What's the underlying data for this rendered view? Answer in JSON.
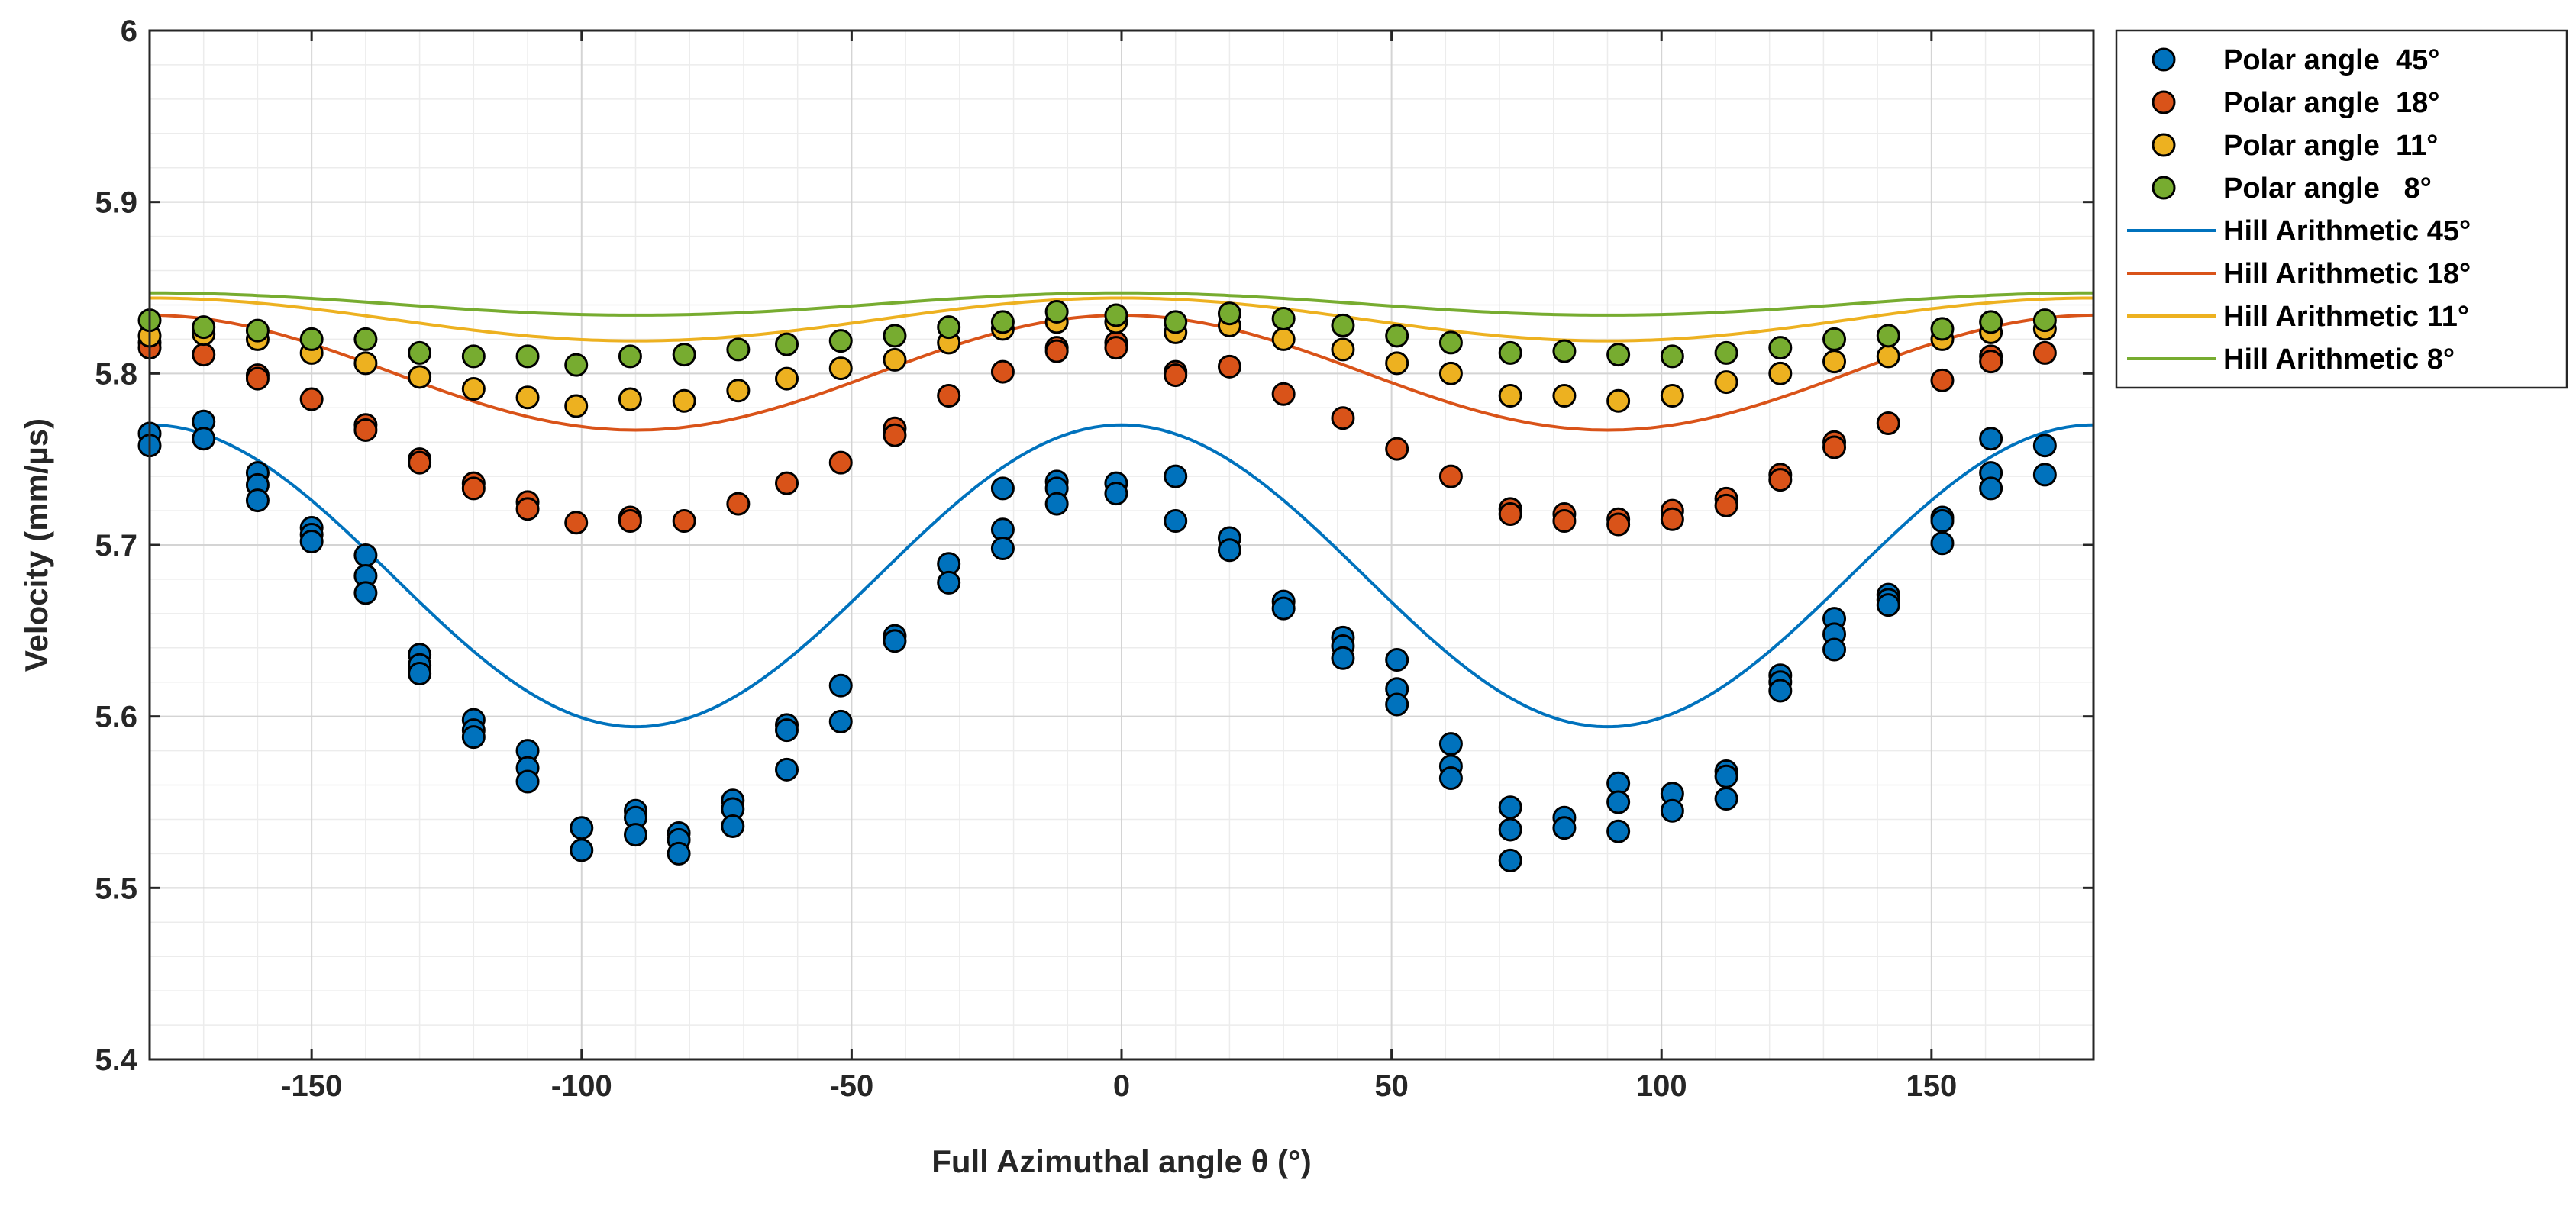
{
  "chart_data": {
    "type": "scatter",
    "title": "",
    "xlabel": "Full Azimuthal angle θ (°)",
    "ylabel": "Velocity (mm/µs)",
    "xlim": [
      -180,
      180
    ],
    "ylim": [
      5.4,
      6.0
    ],
    "xticks": [
      -150,
      -100,
      -50,
      0,
      50,
      100,
      150
    ],
    "xtick_labels": [
      "-150",
      "-100",
      "-50",
      "0",
      "50",
      "100",
      "150"
    ],
    "yticks": [
      5.4,
      5.5,
      5.6,
      5.7,
      5.8,
      5.9,
      6.0
    ],
    "ytick_labels": [
      "5.4",
      "5.5",
      "5.6",
      "5.7",
      "5.8",
      "5.9",
      "6"
    ],
    "grid": true,
    "minor_grid": true,
    "legend_position": "outside-right-top",
    "series": [
      {
        "name": "Polar angle  45°",
        "kind": "scatter",
        "color": "#0072BD",
        "points": [
          [
            -180,
            5.765
          ],
          [
            -180,
            5.758
          ],
          [
            -170,
            5.772
          ],
          [
            -170,
            5.762
          ],
          [
            -160,
            5.742
          ],
          [
            -160,
            5.735
          ],
          [
            -160,
            5.726
          ],
          [
            -150,
            5.71
          ],
          [
            -150,
            5.706
          ],
          [
            -150,
            5.702
          ],
          [
            -140,
            5.694
          ],
          [
            -140,
            5.682
          ],
          [
            -140,
            5.672
          ],
          [
            -130,
            5.636
          ],
          [
            -130,
            5.63
          ],
          [
            -130,
            5.625
          ],
          [
            -120,
            5.598
          ],
          [
            -120,
            5.592
          ],
          [
            -120,
            5.588
          ],
          [
            -110,
            5.58
          ],
          [
            -110,
            5.57
          ],
          [
            -110,
            5.562
          ],
          [
            -100,
            5.535
          ],
          [
            -100,
            5.522
          ],
          [
            -90,
            5.545
          ],
          [
            -90,
            5.541
          ],
          [
            -90,
            5.531
          ],
          [
            -82,
            5.532
          ],
          [
            -82,
            5.528
          ],
          [
            -82,
            5.52
          ],
          [
            -72,
            5.551
          ],
          [
            -72,
            5.546
          ],
          [
            -72,
            5.536
          ],
          [
            -62,
            5.595
          ],
          [
            -62,
            5.592
          ],
          [
            -62,
            5.569
          ],
          [
            -52,
            5.618
          ],
          [
            -52,
            5.597
          ],
          [
            -42,
            5.647
          ],
          [
            -42,
            5.644
          ],
          [
            -32,
            5.689
          ],
          [
            -32,
            5.678
          ],
          [
            -22,
            5.733
          ],
          [
            -22,
            5.709
          ],
          [
            -22,
            5.698
          ],
          [
            -12,
            5.737
          ],
          [
            -12,
            5.733
          ],
          [
            -12,
            5.724
          ],
          [
            -1,
            5.736
          ],
          [
            -1,
            5.73
          ],
          [
            10,
            5.74
          ],
          [
            10,
            5.714
          ],
          [
            20,
            5.704
          ],
          [
            20,
            5.697
          ],
          [
            30,
            5.667
          ],
          [
            30,
            5.663
          ],
          [
            41,
            5.646
          ],
          [
            41,
            5.641
          ],
          [
            41,
            5.634
          ],
          [
            51,
            5.633
          ],
          [
            51,
            5.616
          ],
          [
            51,
            5.607
          ],
          [
            61,
            5.584
          ],
          [
            61,
            5.571
          ],
          [
            61,
            5.564
          ],
          [
            72,
            5.547
          ],
          [
            72,
            5.534
          ],
          [
            72,
            5.516
          ],
          [
            82,
            5.541
          ],
          [
            82,
            5.535
          ],
          [
            92,
            5.561
          ],
          [
            92,
            5.55
          ],
          [
            92,
            5.533
          ],
          [
            102,
            5.555
          ],
          [
            102,
            5.545
          ],
          [
            112,
            5.568
          ],
          [
            112,
            5.565
          ],
          [
            112,
            5.552
          ],
          [
            122,
            5.624
          ],
          [
            122,
            5.62
          ],
          [
            122,
            5.615
          ],
          [
            132,
            5.657
          ],
          [
            132,
            5.648
          ],
          [
            132,
            5.639
          ],
          [
            142,
            5.671
          ],
          [
            142,
            5.668
          ],
          [
            142,
            5.665
          ],
          [
            152,
            5.716
          ],
          [
            152,
            5.714
          ],
          [
            152,
            5.701
          ],
          [
            161,
            5.762
          ],
          [
            161,
            5.742
          ],
          [
            161,
            5.733
          ],
          [
            171,
            5.758
          ],
          [
            171,
            5.741
          ]
        ]
      },
      {
        "name": "Polar angle  18°",
        "kind": "scatter",
        "color": "#D95319",
        "points": [
          [
            -180,
            5.818
          ],
          [
            -180,
            5.815
          ],
          [
            -170,
            5.811
          ],
          [
            -160,
            5.799
          ],
          [
            -160,
            5.797
          ],
          [
            -150,
            5.785
          ],
          [
            -140,
            5.77
          ],
          [
            -140,
            5.767
          ],
          [
            -130,
            5.75
          ],
          [
            -130,
            5.748
          ],
          [
            -120,
            5.736
          ],
          [
            -120,
            5.733
          ],
          [
            -110,
            5.725
          ],
          [
            -110,
            5.721
          ],
          [
            -101,
            5.713
          ],
          [
            -91,
            5.716
          ],
          [
            -91,
            5.714
          ],
          [
            -81,
            5.714
          ],
          [
            -71,
            5.724
          ],
          [
            -62,
            5.736
          ],
          [
            -52,
            5.748
          ],
          [
            -42,
            5.768
          ],
          [
            -42,
            5.764
          ],
          [
            -32,
            5.787
          ],
          [
            -22,
            5.801
          ],
          [
            -12,
            5.815
          ],
          [
            -12,
            5.813
          ],
          [
            -1,
            5.818
          ],
          [
            -1,
            5.815
          ],
          [
            10,
            5.801
          ],
          [
            10,
            5.799
          ],
          [
            20,
            5.804
          ],
          [
            30,
            5.788
          ],
          [
            41,
            5.774
          ],
          [
            51,
            5.756
          ],
          [
            61,
            5.74
          ],
          [
            72,
            5.721
          ],
          [
            72,
            5.718
          ],
          [
            82,
            5.718
          ],
          [
            82,
            5.714
          ],
          [
            92,
            5.715
          ],
          [
            92,
            5.712
          ],
          [
            102,
            5.72
          ],
          [
            102,
            5.715
          ],
          [
            112,
            5.727
          ],
          [
            112,
            5.723
          ],
          [
            122,
            5.741
          ],
          [
            122,
            5.738
          ],
          [
            132,
            5.76
          ],
          [
            132,
            5.757
          ],
          [
            142,
            5.771
          ],
          [
            152,
            5.796
          ],
          [
            161,
            5.81
          ],
          [
            161,
            5.807
          ],
          [
            171,
            5.812
          ]
        ]
      },
      {
        "name": "Polar angle  11°",
        "kind": "scatter",
        "color": "#EDB120",
        "points": [
          [
            -180,
            5.822
          ],
          [
            -170,
            5.823
          ],
          [
            -160,
            5.82
          ],
          [
            -150,
            5.812
          ],
          [
            -140,
            5.806
          ],
          [
            -130,
            5.798
          ],
          [
            -120,
            5.791
          ],
          [
            -110,
            5.786
          ],
          [
            -101,
            5.781
          ],
          [
            -91,
            5.785
          ],
          [
            -81,
            5.784
          ],
          [
            -71,
            5.79
          ],
          [
            -62,
            5.797
          ],
          [
            -52,
            5.803
          ],
          [
            -42,
            5.808
          ],
          [
            -32,
            5.818
          ],
          [
            -22,
            5.826
          ],
          [
            -12,
            5.83
          ],
          [
            -1,
            5.83
          ],
          [
            10,
            5.824
          ],
          [
            20,
            5.828
          ],
          [
            30,
            5.82
          ],
          [
            41,
            5.814
          ],
          [
            51,
            5.806
          ],
          [
            61,
            5.8
          ],
          [
            72,
            5.787
          ],
          [
            82,
            5.787
          ],
          [
            92,
            5.784
          ],
          [
            102,
            5.787
          ],
          [
            112,
            5.795
          ],
          [
            122,
            5.8
          ],
          [
            132,
            5.807
          ],
          [
            142,
            5.81
          ],
          [
            152,
            5.82
          ],
          [
            161,
            5.824
          ],
          [
            171,
            5.826
          ]
        ]
      },
      {
        "name": "Polar angle   8°",
        "kind": "scatter",
        "color": "#77AC30",
        "points": [
          [
            -180,
            5.831
          ],
          [
            -170,
            5.827
          ],
          [
            -160,
            5.825
          ],
          [
            -150,
            5.82
          ],
          [
            -140,
            5.82
          ],
          [
            -130,
            5.812
          ],
          [
            -120,
            5.81
          ],
          [
            -110,
            5.81
          ],
          [
            -101,
            5.805
          ],
          [
            -91,
            5.81
          ],
          [
            -81,
            5.811
          ],
          [
            -71,
            5.814
          ],
          [
            -62,
            5.817
          ],
          [
            -52,
            5.819
          ],
          [
            -42,
            5.822
          ],
          [
            -32,
            5.827
          ],
          [
            -22,
            5.83
          ],
          [
            -12,
            5.836
          ],
          [
            -1,
            5.834
          ],
          [
            10,
            5.83
          ],
          [
            20,
            5.835
          ],
          [
            30,
            5.832
          ],
          [
            41,
            5.828
          ],
          [
            51,
            5.822
          ],
          [
            61,
            5.818
          ],
          [
            72,
            5.812
          ],
          [
            82,
            5.813
          ],
          [
            92,
            5.811
          ],
          [
            102,
            5.81
          ],
          [
            112,
            5.812
          ],
          [
            122,
            5.815
          ],
          [
            132,
            5.82
          ],
          [
            142,
            5.822
          ],
          [
            152,
            5.826
          ],
          [
            161,
            5.83
          ],
          [
            171,
            5.831
          ]
        ]
      },
      {
        "name": "Hill Arithmetic 45°",
        "kind": "line",
        "color": "#0072BD",
        "model": {
          "form": "a0 + a2*cos(2*theta)",
          "a0": 5.682,
          "a2": 0.088
        }
      },
      {
        "name": "Hill Arithmetic 18°",
        "kind": "line",
        "color": "#D95319",
        "model": {
          "form": "a0 + a2*cos(2*theta)",
          "a0": 5.8005,
          "a2": 0.0335
        }
      },
      {
        "name": "Hill Arithmetic 11°",
        "kind": "line",
        "color": "#EDB120",
        "model": {
          "form": "a0 + a2*cos(2*theta)",
          "a0": 5.8315,
          "a2": 0.0125
        }
      },
      {
        "name": "Hill Arithmetic 8°",
        "kind": "line",
        "color": "#77AC30",
        "model": {
          "form": "a0 + a2*cos(2*theta)",
          "a0": 5.8405,
          "a2": 0.0065
        }
      }
    ]
  }
}
